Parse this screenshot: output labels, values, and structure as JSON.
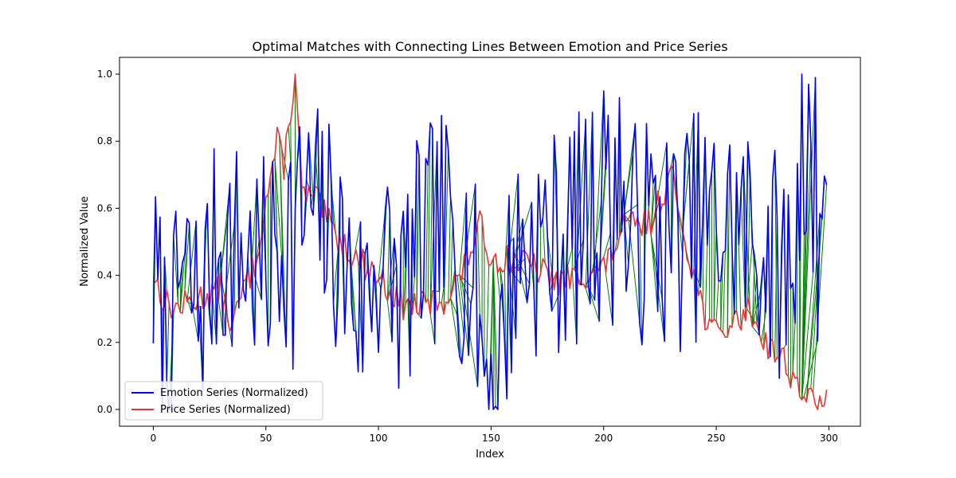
{
  "chart_data": {
    "type": "line",
    "title": "Optimal Matches with Connecting Lines Between Emotion and Price Series",
    "xlabel": "Index",
    "ylabel": "Normalized Value",
    "xlim": [
      -15,
      314
    ],
    "ylim": [
      -0.05,
      1.05
    ],
    "xticks": [
      0,
      50,
      100,
      150,
      200,
      250,
      300
    ],
    "yticks": [
      0.0,
      0.2,
      0.4,
      0.6,
      0.8,
      1.0
    ],
    "xtick_labels": [
      "0",
      "50",
      "100",
      "150",
      "200",
      "250",
      "300"
    ],
    "ytick_labels": [
      "0.0",
      "0.2",
      "0.4",
      "0.6",
      "0.8",
      "1.0"
    ],
    "legend_position": "lower-left",
    "series": [
      {
        "name": "Emotion Series (Normalized)",
        "color": "#0000ff",
        "seed": 7,
        "length": 300,
        "anchors": [
          [
            0,
            0.38
          ],
          [
            8,
            0.1
          ],
          [
            12,
            0.42
          ],
          [
            20,
            0.3
          ],
          [
            30,
            0.5
          ],
          [
            42,
            0.45
          ],
          [
            50,
            0.4
          ],
          [
            60,
            0.55
          ],
          [
            70,
            0.6
          ],
          [
            80,
            0.52
          ],
          [
            92,
            0.3
          ],
          [
            100,
            0.45
          ],
          [
            110,
            0.35
          ],
          [
            120,
            0.5
          ],
          [
            130,
            0.55
          ],
          [
            140,
            0.45
          ],
          [
            151,
            0.0
          ],
          [
            160,
            0.45
          ],
          [
            170,
            0.5
          ],
          [
            180,
            0.5
          ],
          [
            190,
            0.55
          ],
          [
            200,
            0.6
          ],
          [
            210,
            0.5
          ],
          [
            220,
            0.55
          ],
          [
            230,
            0.5
          ],
          [
            240,
            0.55
          ],
          [
            250,
            0.55
          ],
          [
            260,
            0.55
          ],
          [
            270,
            0.5
          ],
          [
            280,
            0.4
          ],
          [
            285,
            0.5
          ],
          [
            290,
            0.6
          ],
          [
            295,
            0.5
          ],
          [
            299,
            0.67
          ]
        ]
      },
      {
        "name": "Price Series (Normalized)",
        "color": "#ee3333",
        "seed": 13,
        "length": 300,
        "anchors": [
          [
            0,
            0.4
          ],
          [
            5,
            0.32
          ],
          [
            10,
            0.3
          ],
          [
            20,
            0.33
          ],
          [
            30,
            0.36
          ],
          [
            35,
            0.24
          ],
          [
            40,
            0.36
          ],
          [
            45,
            0.43
          ],
          [
            50,
            0.62
          ],
          [
            55,
            0.8
          ],
          [
            58,
            0.73
          ],
          [
            63,
            1.0
          ],
          [
            66,
            0.64
          ],
          [
            72,
            0.63
          ],
          [
            80,
            0.53
          ],
          [
            90,
            0.45
          ],
          [
            100,
            0.4
          ],
          [
            110,
            0.31
          ],
          [
            120,
            0.31
          ],
          [
            130,
            0.33
          ],
          [
            138,
            0.42
          ],
          [
            145,
            0.55
          ],
          [
            150,
            0.45
          ],
          [
            160,
            0.45
          ],
          [
            170,
            0.42
          ],
          [
            180,
            0.38
          ],
          [
            190,
            0.4
          ],
          [
            200,
            0.42
          ],
          [
            210,
            0.55
          ],
          [
            220,
            0.55
          ],
          [
            230,
            0.7
          ],
          [
            235,
            0.55
          ],
          [
            240,
            0.4
          ],
          [
            245,
            0.28
          ],
          [
            250,
            0.22
          ],
          [
            258,
            0.26
          ],
          [
            265,
            0.3
          ],
          [
            270,
            0.22
          ],
          [
            275,
            0.18
          ],
          [
            280,
            0.15
          ],
          [
            285,
            0.08
          ],
          [
            290,
            0.04
          ],
          [
            293,
            0.02
          ],
          [
            295,
            0.0
          ],
          [
            299,
            0.07
          ]
        ]
      }
    ],
    "connections": {
      "name": "Optimal matches",
      "color": "#008000"
    }
  }
}
